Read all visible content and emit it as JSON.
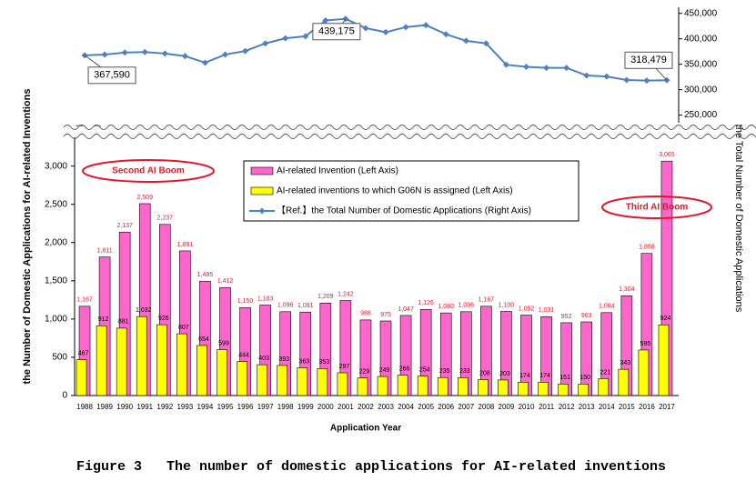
{
  "chart_data": {
    "type": "bar",
    "caption": "Figure 3   The number of domestic applications for AI-related inventions",
    "x_label": "Application Year",
    "y_label": "the Number of Domestic Applications for AI-related Inventions",
    "y2_label": "the Total Number of Domestic Applications",
    "annotations": [
      "Second AI Boom",
      "Third AI Boom"
    ],
    "categories": [
      "1988",
      "1989",
      "1990",
      "1991",
      "1992",
      "1993",
      "1994",
      "1995",
      "1996",
      "1997",
      "1998",
      "1999",
      "2000",
      "2001",
      "2002",
      "2003",
      "2004",
      "2005",
      "2006",
      "2007",
      "2008",
      "2009",
      "2010",
      "2011",
      "2012",
      "2013",
      "2014",
      "2015",
      "2016",
      "2017"
    ],
    "series": [
      {
        "name": "AI-related Invention (Left Axis)",
        "type": "bar",
        "color": "#ff66cc",
        "values": [
          1167,
          1811,
          2137,
          2509,
          2237,
          1891,
          1495,
          1412,
          1150,
          1183,
          1096,
          1091,
          1209,
          1242,
          988,
          975,
          1047,
          1126,
          1080,
          1096,
          1167,
          1100,
          1052,
          1031,
          952,
          963,
          1084,
          1304,
          1858,
          3065
        ],
        "value_labels": [
          "1,167",
          "1,811",
          "2,137",
          "2,509",
          "2,237",
          "1,891",
          "1,495",
          "1,412",
          "1,150",
          "1,183",
          "1,096",
          "1,091",
          "1,209",
          "1,242",
          "988",
          "975",
          "1,047",
          "1,126",
          "1,080",
          "1,096",
          "1,167",
          "1,100",
          "1,052",
          "1,031",
          "952",
          "963",
          "1,084",
          "1,304",
          "1,858",
          "3,065"
        ]
      },
      {
        "name": "AI-related inventions to which G06N is assigned (Left Axis)",
        "type": "bar",
        "color": "#ffff00",
        "values": [
          467,
          912,
          881,
          1032,
          926,
          807,
          654,
          599,
          444,
          403,
          393,
          363,
          353,
          297,
          229,
          249,
          266,
          254,
          235,
          233,
          208,
          203,
          174,
          174,
          151,
          150,
          221,
          343,
          595,
          924
        ],
        "value_labels": [
          "467",
          "912",
          "881",
          "1,032",
          "926",
          "807",
          "654",
          "599",
          "444",
          "403",
          "393",
          "363",
          "353",
          "297",
          "229",
          "249",
          "266",
          "254",
          "235",
          "233",
          "208",
          "203",
          "174",
          "174",
          "151",
          "150",
          "221",
          "343",
          "595",
          "924"
        ]
      },
      {
        "name": "【Ref.】the Total Number of Domestic Applications (Right Axis)",
        "type": "line",
        "axis": "y2",
        "color": "#4f81bd",
        "values": [
          367590,
          369000,
          373000,
          374000,
          371000,
          366000,
          353000,
          369000,
          376000,
          391000,
          401000,
          405000,
          436000,
          439175,
          421000,
          413000,
          423000,
          427000,
          409000,
          396000,
          391000,
          349000,
          345000,
          343000,
          343000,
          328000,
          326000,
          319000,
          318000,
          318479
        ],
        "value_labels": [
          "367,590",
          null,
          null,
          null,
          null,
          null,
          null,
          null,
          null,
          null,
          null,
          null,
          null,
          "439,175",
          null,
          null,
          null,
          null,
          null,
          null,
          null,
          null,
          null,
          null,
          null,
          null,
          null,
          null,
          null,
          "318,479"
        ]
      }
    ],
    "ylim": [
      0,
      3400
    ],
    "yticks": [
      0,
      500,
      {
        "value": 1000,
        "label": "1,000"
      },
      {
        "value": 1500,
        "label": "1,500"
      },
      {
        "value": 2000,
        "label": "2,000"
      },
      {
        "value": 2500,
        "label": "2,500"
      },
      {
        "value": 3000,
        "label": "3,000"
      }
    ],
    "y2lim": [
      235000,
      462000
    ],
    "y2ticks": [
      {
        "value": 250000,
        "label": "250,000"
      },
      {
        "value": 300000,
        "label": "300,000"
      },
      {
        "value": 350000,
        "label": "350,000"
      },
      {
        "value": 400000,
        "label": "400,000"
      },
      {
        "value": 450000,
        "label": "450,000"
      }
    ]
  }
}
